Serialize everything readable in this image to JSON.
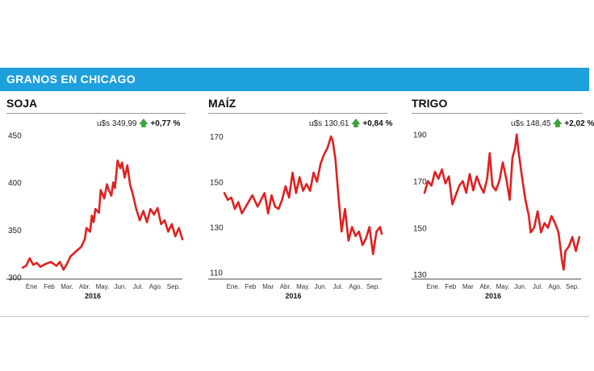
{
  "header": {
    "title": "GRANOS EN CHICAGO"
  },
  "colors": {
    "banner": "#1ea0dc",
    "line": "#e02020",
    "up_arrow": "#3aa13a"
  },
  "panels": [
    {
      "title": "SOJA",
      "price": "u$s 349,99",
      "change": "+0,77 %",
      "arrow_icon": "up-arrow-icon"
    },
    {
      "title": "MAÍZ",
      "price": "u$s 130,61",
      "change": "+0,84 %",
      "arrow_icon": "up-arrow-icon"
    },
    {
      "title": "TRIGO",
      "price": "u$s 148,45",
      "change": "+2,02 %",
      "arrow_icon": "up-arrow-icon"
    }
  ],
  "chart_data": [
    {
      "type": "line",
      "title": "SOJA",
      "xlabel": "2016",
      "categories": [
        "Ene",
        "Feb",
        "Mar.",
        "Abr.",
        "May.",
        "Jun.",
        "Jul.",
        "Ago.",
        "Sep."
      ],
      "yticks": [
        300,
        350,
        400,
        450
      ],
      "ylim": [
        298,
        458
      ],
      "x": [
        0,
        0.2,
        0.4,
        0.6,
        0.8,
        1.0,
        1.3,
        1.6,
        1.9,
        2.1,
        2.3,
        2.5,
        2.7,
        3.0,
        3.3,
        3.5,
        3.6,
        3.8,
        3.9,
        4.0,
        4.1,
        4.3,
        4.4,
        4.6,
        4.75,
        4.85,
        5.0,
        5.1,
        5.2,
        5.35,
        5.5,
        5.6,
        5.75,
        5.9,
        6.05,
        6.2,
        6.4,
        6.6,
        6.8,
        7.0,
        7.2,
        7.4,
        7.6,
        7.8,
        8.0,
        8.2,
        8.4,
        8.6,
        8.8,
        9.0
      ],
      "values": [
        310,
        312,
        320,
        313,
        315,
        311,
        314,
        316,
        312,
        316,
        308,
        314,
        322,
        327,
        332,
        340,
        352,
        348,
        365,
        358,
        372,
        368,
        392,
        383,
        398,
        392,
        386,
        400,
        394,
        423,
        415,
        421,
        405,
        418,
        398,
        388,
        372,
        360,
        370,
        358,
        372,
        366,
        373,
        356,
        360,
        348,
        356,
        343,
        352,
        340
      ]
    },
    {
      "type": "line",
      "title": "MAÍZ",
      "xlabel": "2016",
      "categories": [
        "Ene.",
        "Feb",
        "Mar",
        "Abr.",
        "May.",
        "Jun.",
        "Jul.",
        "Ago.",
        "Sep."
      ],
      "yticks": [
        110,
        130,
        150,
        170
      ],
      "ylim": [
        107,
        174
      ],
      "x": [
        0,
        0.2,
        0.4,
        0.6,
        0.8,
        1.0,
        1.3,
        1.6,
        1.9,
        2.1,
        2.3,
        2.5,
        2.7,
        2.9,
        3.1,
        3.3,
        3.5,
        3.7,
        3.9,
        4.1,
        4.3,
        4.5,
        4.7,
        4.9,
        5.1,
        5.3,
        5.5,
        5.7,
        5.9,
        6.1,
        6.2,
        6.35,
        6.5,
        6.7,
        6.9,
        7.1,
        7.3,
        7.5,
        7.7,
        7.9,
        8.1,
        8.3,
        8.5,
        8.7,
        8.9,
        9.0
      ],
      "values": [
        145,
        142,
        143,
        138,
        141,
        136,
        140,
        144,
        139,
        142,
        145,
        136,
        144,
        139,
        138,
        142,
        148,
        143,
        154,
        145,
        152,
        146,
        149,
        146,
        154,
        150,
        158,
        162,
        165,
        170,
        168,
        160,
        146,
        128,
        138,
        124,
        130,
        126,
        128,
        122,
        125,
        130,
        118,
        128,
        130,
        127
      ]
    },
    {
      "type": "line",
      "title": "TRIGO",
      "xlabel": "2016",
      "categories": [
        "Ene.",
        "Feb",
        "Mar",
        "Abr.",
        "May.",
        "Jun.",
        "Jul.",
        "Ago.",
        "Sep."
      ],
      "yticks": [
        130,
        150,
        170,
        190
      ],
      "ylim": [
        128,
        193
      ],
      "x": [
        0,
        0.2,
        0.4,
        0.6,
        0.8,
        1.0,
        1.2,
        1.4,
        1.6,
        1.8,
        2.0,
        2.2,
        2.4,
        2.6,
        2.8,
        3.0,
        3.2,
        3.4,
        3.6,
        3.75,
        3.9,
        4.1,
        4.3,
        4.5,
        4.7,
        4.9,
        5.05,
        5.2,
        5.3,
        5.4,
        5.6,
        5.8,
        6.0,
        6.1,
        6.3,
        6.5,
        6.7,
        6.9,
        7.1,
        7.3,
        7.5,
        7.7,
        7.9,
        8.0,
        8.1,
        8.3,
        8.5,
        8.7,
        8.9
      ],
      "values": [
        165,
        170,
        168,
        174,
        171,
        175,
        169,
        172,
        160,
        164,
        168,
        170,
        165,
        173,
        166,
        172,
        168,
        165,
        171,
        182,
        168,
        166,
        170,
        178,
        171,
        162,
        180,
        184,
        190,
        183,
        172,
        162,
        155,
        148,
        150,
        157,
        148,
        152,
        150,
        155,
        152,
        148,
        136,
        132,
        140,
        142,
        146,
        140,
        146
      ]
    }
  ]
}
